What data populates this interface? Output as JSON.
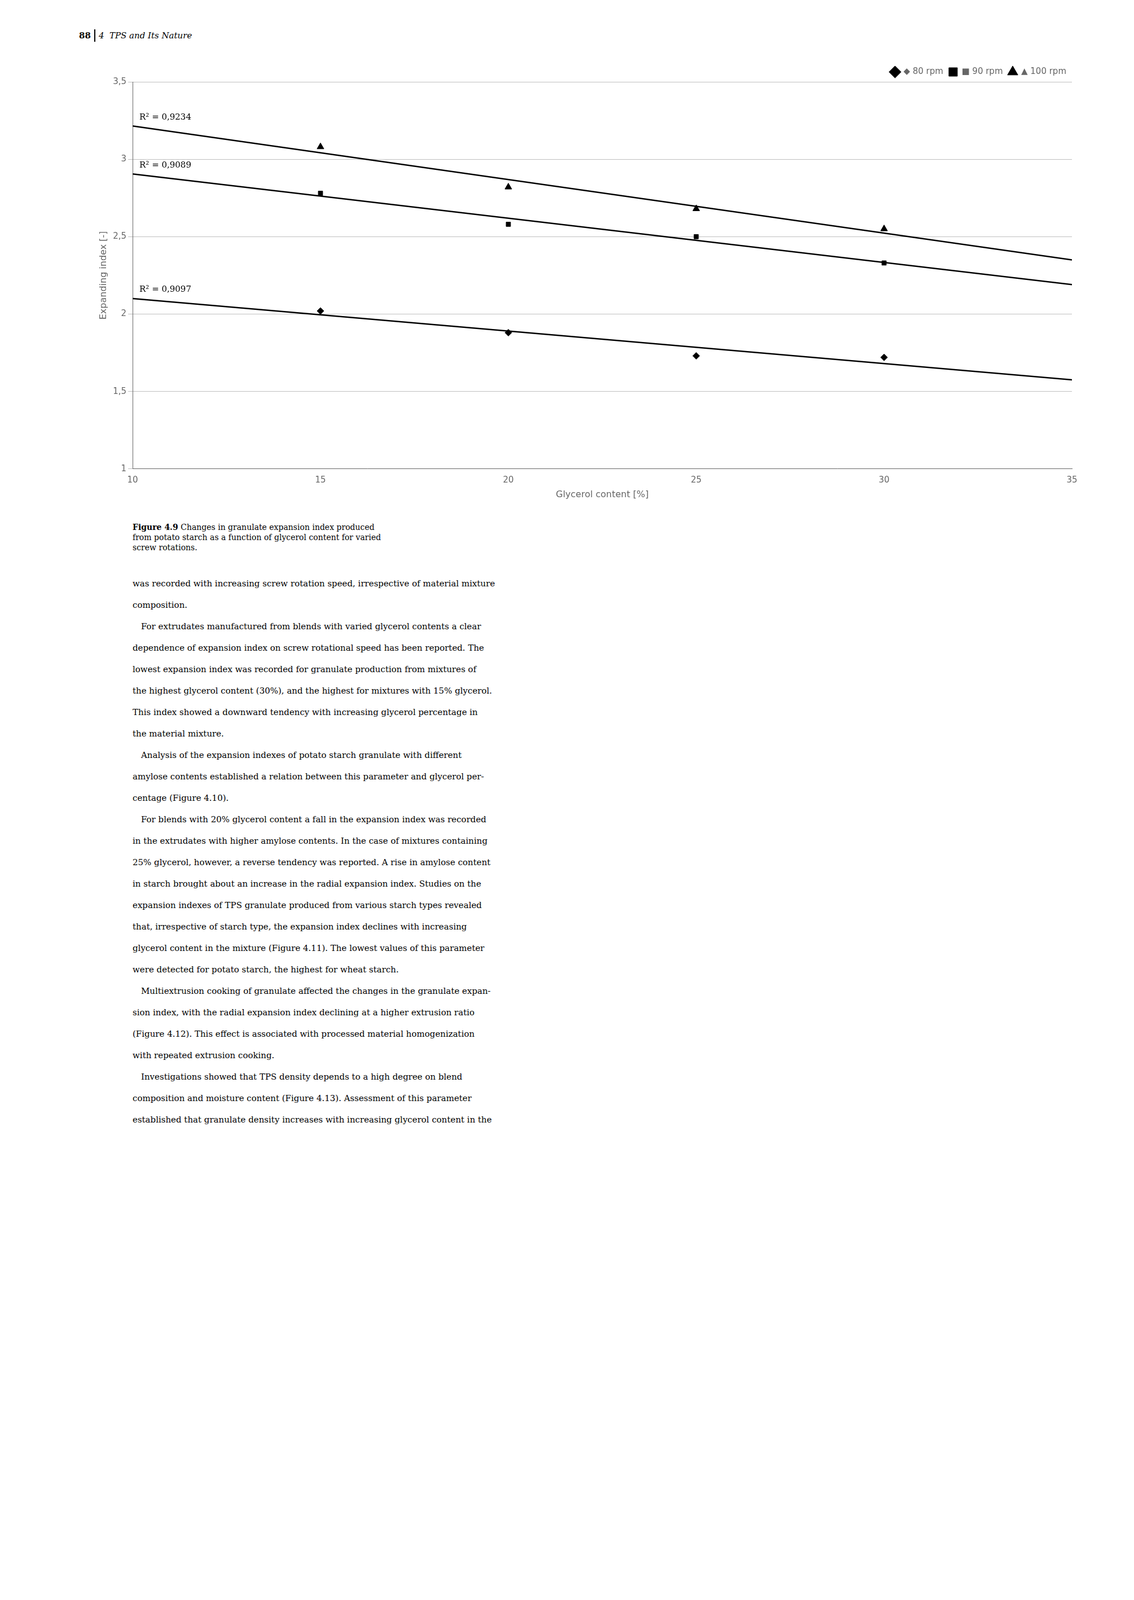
{
  "page_header": {
    "number": "88",
    "text": "4  TPS and Its Nature"
  },
  "chart_data": {
    "type": "scatter",
    "x_label": "Glycerol content [%]",
    "y_label": "Expanding index [-]",
    "xlim": [
      10,
      35
    ],
    "ylim": [
      1,
      3.5
    ],
    "xticks": [
      10,
      15,
      20,
      25,
      30,
      35
    ],
    "yticks": [
      1,
      {
        "value": 1.5,
        "label": "1,5"
      },
      2,
      {
        "value": 2.5,
        "label": "2,5"
      },
      3,
      {
        "value": 3.5,
        "label": "3,5"
      }
    ],
    "grid": "y",
    "legend": "upper right",
    "color": "#000000",
    "x": [
      15,
      20,
      25,
      30
    ],
    "series": [
      {
        "name": "◆ 80 rpm",
        "marker": "diamond",
        "values": [
          2.02,
          1.88,
          1.73,
          1.72
        ],
        "trend": {
          "x": [
            10,
            35
          ],
          "values": [
            2.1,
            1.575
          ]
        },
        "annotation": "R² = 0,9097"
      },
      {
        "name": "■ 90 rpm",
        "marker": "square",
        "values": [
          2.78,
          2.58,
          2.5,
          2.33
        ],
        "trend": {
          "x": [
            10,
            35
          ],
          "values": [
            2.905,
            2.19
          ]
        },
        "annotation": "R² = 0,9089"
      },
      {
        "name": "▲ 100 rpm",
        "marker": "triangle",
        "values": [
          3.08,
          2.82,
          2.68,
          2.55
        ],
        "trend": {
          "x": [
            10,
            35
          ],
          "values": [
            3.215,
            2.35
          ]
        },
        "annotation": "R² = 0,9234"
      }
    ]
  },
  "caption": {
    "label": "Figure 4.9",
    "lines": [
      " Changes in granulate expansion index produced",
      "from potato starch as a function of glycerol content for varied",
      "screw rotations."
    ]
  },
  "body_text": [
    "was recorded with increasing screw rotation speed, irrespective of material mixture",
    "composition.",
    " For extrudates manufactured from blends with varied glycerol contents a clear",
    "dependence of expansion index on screw rotational speed has been reported. The",
    "lowest expansion index was recorded for granulate production from mixtures of",
    "the highest glycerol content (30%), and the highest for mixtures with 15% glycerol.",
    "This index showed a downward tendency with increasing glycerol percentage in",
    "the material mixture.",
    " Analysis of the expansion indexes of potato starch granulate with different",
    "amylose contents established a relation between this parameter and glycerol per-",
    "centage (Figure 4.10).",
    " For blends with 20% glycerol content a fall in the expansion index was recorded",
    "in the extrudates with higher amylose contents. In the case of mixtures containing",
    "25% glycerol, however, a reverse tendency was reported. A rise in amylose content",
    "in starch brought about an increase in the radial expansion index. Studies on the",
    "expansion indexes of TPS granulate produced from various starch types revealed",
    "that, irrespective of starch type, the expansion index declines with increasing",
    "glycerol content in the mixture (Figure 4.11). The lowest values of this parameter",
    "were detected for potato starch, the highest for wheat starch.",
    " Multiextrusion cooking of granulate affected the changes in the granulate expan-",
    "sion index, with the radial expansion index declining at a higher extrusion ratio",
    "(Figure 4.12). This effect is associated with processed material homogenization",
    "with repeated extrusion cooking.",
    " Investigations showed that TPS density depends to a high degree on blend",
    "composition and moisture content (Figure 4.13). Assessment of this parameter",
    "established that granulate density increases with increasing glycerol content in the"
  ]
}
